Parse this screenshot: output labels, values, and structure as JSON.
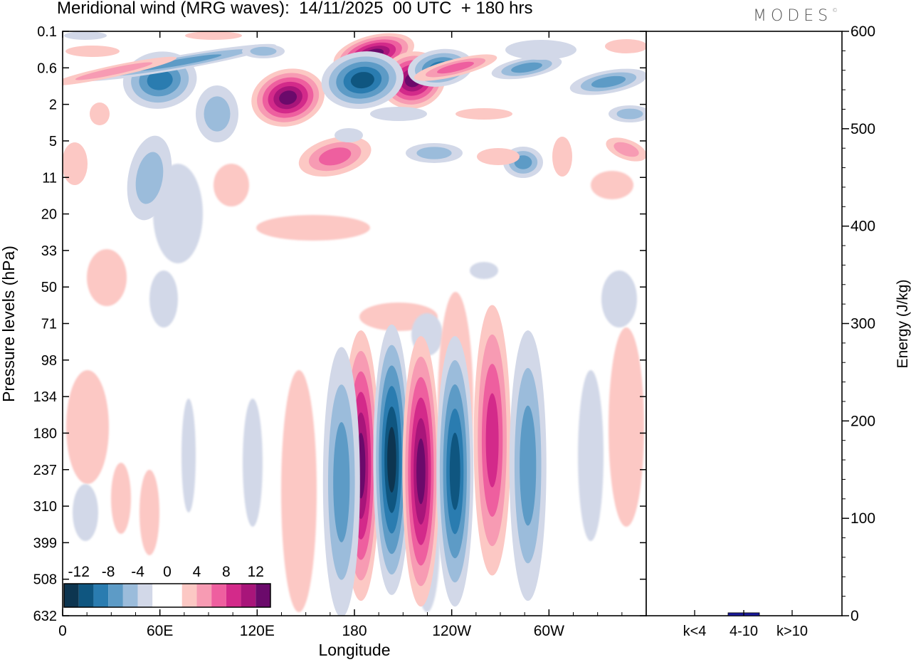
{
  "title": "Meridional wind (MRG waves):  14/11/2025  00 UTC  + 180 hrs",
  "brand": "MODES",
  "brand_mark": "©",
  "chart_data": [
    {
      "type": "heatmap",
      "name": "Longitude-pressure cross section of meridional wind",
      "xlabel": "Longitude",
      "ylabel": "Pressure levels (hPa)",
      "x_ticks": [
        "0",
        "60E",
        "120E",
        "180",
        "120W",
        "60W"
      ],
      "y_ticks": [
        "0.1",
        "0.6",
        "2",
        "5",
        "11",
        "20",
        "33",
        "50",
        "71",
        "98",
        "134",
        "180",
        "237",
        "310",
        "399",
        "508",
        "632"
      ],
      "colorbar": {
        "levels": [
          -14,
          -12,
          -10,
          -8,
          -6,
          -4,
          -2,
          2,
          4,
          6,
          8,
          10,
          12,
          14
        ],
        "labels": [
          "-12",
          "-8",
          "-4",
          "0",
          "4",
          "8",
          "12"
        ],
        "colors": [
          "#0d3550",
          "#0f5680",
          "#2a7cb0",
          "#5d9bc6",
          "#9bbcdb",
          "#d2d8e8",
          "#ffffff",
          "#ffffff",
          "#fcc8c4",
          "#f79bb3",
          "#ee5f9f",
          "#d32a8a",
          "#a8157a",
          "#6b0a6b"
        ]
      },
      "features": [
        {
          "lon": 184,
          "p": 230,
          "value": 12
        },
        {
          "lon": 203,
          "p": 220,
          "value": -14
        },
        {
          "lon": 221,
          "p": 240,
          "value": 14
        },
        {
          "lon": 242,
          "p": 240,
          "value": -10
        },
        {
          "lon": 265,
          "p": 190,
          "value": 8
        },
        {
          "lon": 287,
          "p": 230,
          "value": -6
        },
        {
          "lon": 172,
          "p": 260,
          "value": -6
        },
        {
          "lon": 139,
          "p": 1.6,
          "value": 14
        },
        {
          "lon": 192,
          "p": 0.3,
          "value": 14
        },
        {
          "lon": 216,
          "p": 0.9,
          "value": 14
        },
        {
          "lon": 168,
          "p": 7,
          "value": 6
        },
        {
          "lon": 185,
          "p": 0.9,
          "value": -10
        },
        {
          "lon": 233,
          "p": 0.6,
          "value": -8
        },
        {
          "lon": 60,
          "p": 0.9,
          "value": -8
        }
      ]
    },
    {
      "type": "bar",
      "name": "MRG wave energy by zonal wavenumber",
      "categories": [
        "k<4",
        "4-10",
        "k>10"
      ],
      "values": [
        0,
        3,
        0
      ],
      "ylabel": "Energy (J/kg)",
      "ylim": [
        0,
        600
      ],
      "y_ticks": [
        "0",
        "100",
        "200",
        "300",
        "400",
        "500",
        "600"
      ],
      "bar_color": "#1a1a9a"
    }
  ]
}
